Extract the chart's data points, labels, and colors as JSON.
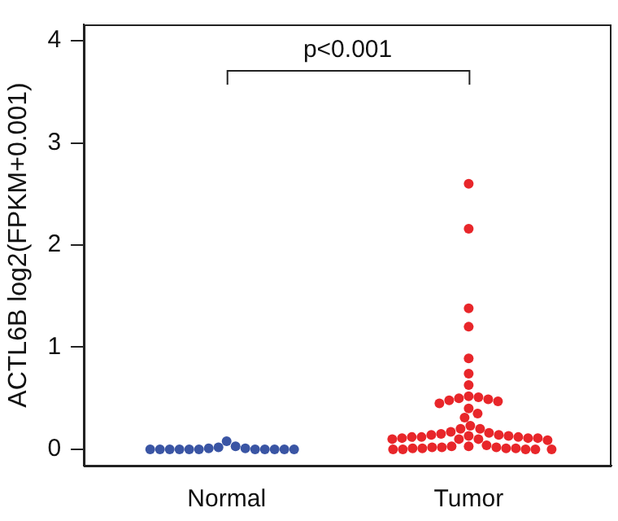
{
  "chart_data": {
    "type": "scatter",
    "ylabel": "ACTL6B log2(FPKM+0.001)",
    "categories": [
      "Normal",
      "Tumor"
    ],
    "ylim": [
      -0.16,
      4.16
    ],
    "yticks": [
      0,
      1,
      2,
      3,
      4
    ],
    "grid": false,
    "legend": false,
    "marker": "circle",
    "annotations": [
      "p<0.001"
    ],
    "series": [
      {
        "color": "#3a55a4",
        "x": [
          "Normal",
          "Normal",
          "Normal",
          "Normal",
          "Normal",
          "Normal",
          "Normal",
          "Normal",
          "Normal",
          "Normal",
          "Normal",
          "Normal",
          "Normal",
          "Normal",
          "Normal",
          "Normal"
        ],
        "values": [
          0.08,
          0.03,
          0.02,
          0.01,
          0.01,
          0,
          0,
          0,
          0,
          0,
          0,
          0,
          0,
          0,
          0,
          0
        ]
      },
      {
        "color": "#e8262a",
        "x": [
          "Tumor",
          "Tumor",
          "Tumor",
          "Tumor",
          "Tumor",
          "Tumor",
          "Tumor",
          "Tumor",
          "Tumor",
          "Tumor",
          "Tumor",
          "Tumor",
          "Tumor",
          "Tumor",
          "Tumor",
          "Tumor",
          "Tumor",
          "Tumor",
          "Tumor",
          "Tumor",
          "Tumor",
          "Tumor",
          "Tumor",
          "Tumor",
          "Tumor",
          "Tumor",
          "Tumor",
          "Tumor",
          "Tumor",
          "Tumor",
          "Tumor",
          "Tumor",
          "Tumor",
          "Tumor",
          "Tumor",
          "Tumor",
          "Tumor",
          "Tumor",
          "Tumor",
          "Tumor",
          "Tumor",
          "Tumor",
          "Tumor",
          "Tumor",
          "Tumor",
          "Tumor",
          "Tumor",
          "Tumor",
          "Tumor",
          "Tumor",
          "Tumor",
          "Tumor"
        ],
        "values": [
          2.6,
          2.16,
          1.38,
          1.2,
          0.89,
          0.74,
          0.63,
          0.52,
          0.51,
          0.5,
          0.49,
          0.48,
          0.47,
          0.45,
          0.4,
          0.35,
          0.31,
          0.23,
          0.2,
          0.2,
          0.17,
          0.16,
          0.15,
          0.14,
          0.14,
          0.13,
          0.13,
          0.12,
          0.12,
          0.12,
          0.11,
          0.11,
          0.11,
          0.1,
          0.1,
          0.1,
          0.09,
          0.04,
          0.03,
          0.03,
          0.02,
          0.02,
          0.02,
          0.01,
          0.01,
          0.01,
          0.01,
          0,
          0,
          0,
          0,
          0
        ]
      }
    ]
  }
}
